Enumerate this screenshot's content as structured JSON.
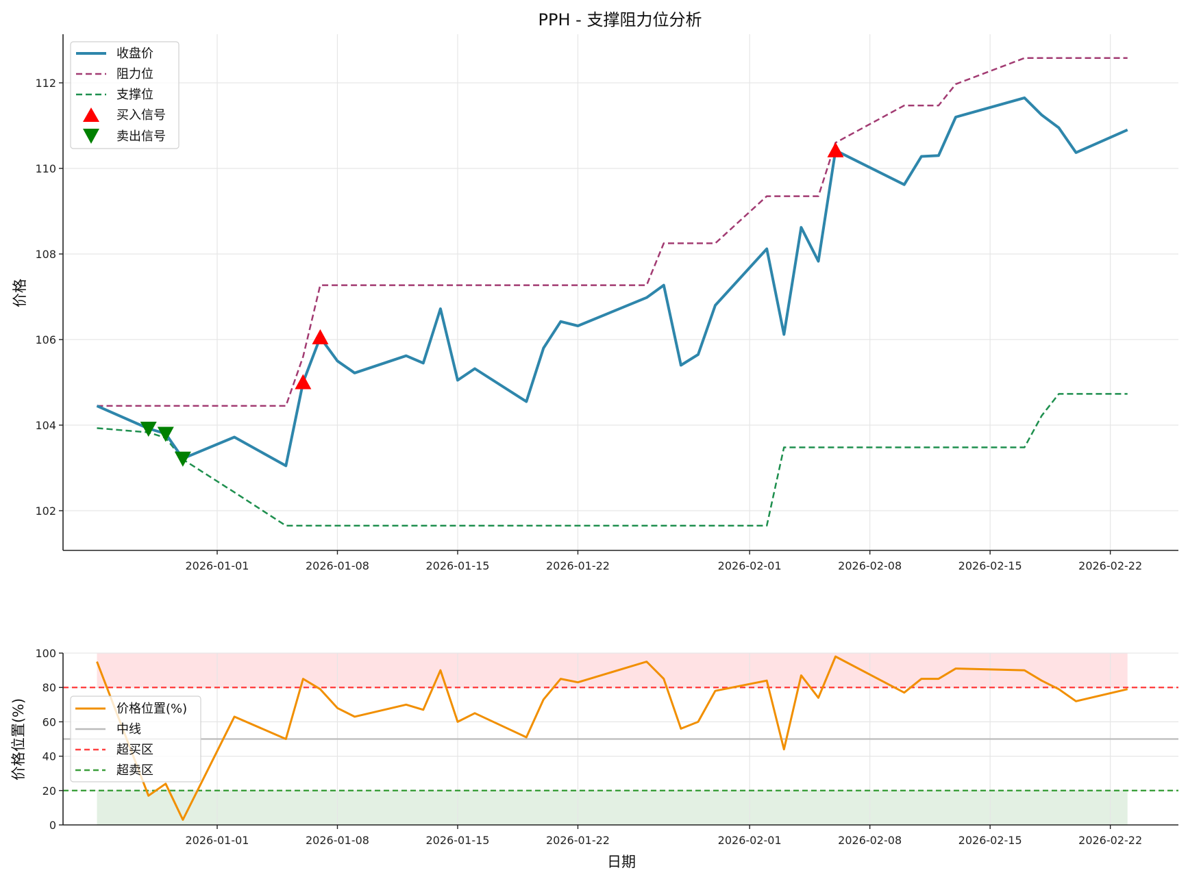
{
  "chart_data": [
    {
      "type": "line",
      "title": "PPH - 支撑阻力位分析",
      "xlabel": "",
      "ylabel": "价格",
      "ylim": [
        101.1,
        113.2
      ],
      "yticks": [
        102,
        104,
        106,
        108,
        110,
        112
      ],
      "xtick_labels": [
        "2026-01-01",
        "2026-01-08",
        "2026-01-15",
        "2026-01-22",
        "2026-02-01",
        "2026-02-08",
        "2026-02-15",
        "2026-02-22"
      ],
      "grid": true,
      "legend_position": "upper left",
      "x": [
        "2025-12-25",
        "2025-12-28",
        "2025-12-29",
        "2025-12-30",
        "2026-01-02",
        "2026-01-05",
        "2026-01-06",
        "2026-01-07",
        "2026-01-08",
        "2026-01-09",
        "2026-01-12",
        "2026-01-13",
        "2026-01-14",
        "2026-01-15",
        "2026-01-16",
        "2026-01-19",
        "2026-01-20",
        "2026-01-21",
        "2026-01-22",
        "2026-01-26",
        "2026-01-27",
        "2026-01-28",
        "2026-01-29",
        "2026-01-30",
        "2026-02-02",
        "2026-02-03",
        "2026-02-04",
        "2026-02-05",
        "2026-02-06",
        "2026-02-10",
        "2026-02-11",
        "2026-02-12",
        "2026-02-13",
        "2026-02-17",
        "2026-02-18",
        "2026-02-19",
        "2026-02-20",
        "2026-02-23"
      ],
      "series": [
        {
          "name": "收盘价",
          "color": "#2e86ab",
          "style": "solid",
          "values": [
            104.45,
            103.92,
            103.8,
            103.22,
            103.72,
            103.05,
            105.0,
            106.05,
            105.5,
            105.22,
            105.62,
            105.45,
            106.72,
            105.05,
            105.32,
            104.55,
            105.8,
            106.42,
            106.32,
            106.98,
            107.27,
            105.4,
            105.65,
            106.8,
            108.12,
            106.12,
            108.62,
            107.83,
            110.42,
            109.62,
            110.28,
            110.3,
            111.2,
            111.65,
            111.25,
            110.95,
            110.37,
            110.9
          ]
        },
        {
          "name": "阻力位",
          "color": "#a23b72",
          "style": "dashed",
          "values": [
            104.45,
            104.45,
            104.45,
            104.45,
            104.45,
            104.45,
            105.6,
            107.27,
            107.27,
            107.27,
            107.27,
            107.27,
            107.27,
            107.27,
            107.27,
            107.27,
            107.27,
            107.27,
            107.27,
            107.27,
            108.25,
            108.25,
            108.25,
            108.25,
            109.35,
            109.35,
            109.35,
            109.35,
            110.6,
            111.47,
            111.47,
            111.47,
            111.97,
            112.58,
            112.58,
            112.58,
            112.58,
            112.58
          ]
        },
        {
          "name": "支撑位",
          "color": "#1e8f4e",
          "style": "dashed",
          "values": [
            103.93,
            103.83,
            103.7,
            103.2,
            102.43,
            101.65,
            101.65,
            101.65,
            101.65,
            101.65,
            101.65,
            101.65,
            101.65,
            101.65,
            101.65,
            101.65,
            101.65,
            101.65,
            101.65,
            101.65,
            101.65,
            101.65,
            101.65,
            101.65,
            101.65,
            103.48,
            103.48,
            103.48,
            103.48,
            103.48,
            103.48,
            103.48,
            103.48,
            103.48,
            104.22,
            104.73,
            104.73,
            104.73
          ]
        }
      ],
      "markers": [
        {
          "name": "买入信号",
          "color": "#ff0000",
          "shape": "triangle-up",
          "points": [
            {
              "x": "2026-01-06",
              "y": 105.0
            },
            {
              "x": "2026-01-07",
              "y": 106.05
            },
            {
              "x": "2026-02-06",
              "y": 110.42
            }
          ]
        },
        {
          "name": "卖出信号",
          "color": "#008000",
          "shape": "triangle-down",
          "points": [
            {
              "x": "2025-12-28",
              "y": 103.92
            },
            {
              "x": "2025-12-29",
              "y": 103.8
            },
            {
              "x": "2025-12-30",
              "y": 103.22
            }
          ]
        }
      ]
    },
    {
      "type": "line",
      "title": "",
      "xlabel": "日期",
      "ylabel": "价格位置(%)",
      "ylim": [
        0,
        100
      ],
      "yticks": [
        0,
        20,
        40,
        60,
        80,
        100
      ],
      "xtick_labels": [
        "2026-01-01",
        "2026-01-08",
        "2026-01-15",
        "2026-01-22",
        "2026-02-01",
        "2026-02-08",
        "2026-02-15",
        "2026-02-22"
      ],
      "grid": true,
      "legend_position": "center left",
      "x": [
        "2025-12-25",
        "2025-12-28",
        "2025-12-29",
        "2025-12-30",
        "2026-01-02",
        "2026-01-05",
        "2026-01-06",
        "2026-01-07",
        "2026-01-08",
        "2026-01-09",
        "2026-01-12",
        "2026-01-13",
        "2026-01-14",
        "2026-01-15",
        "2026-01-16",
        "2026-01-19",
        "2026-01-20",
        "2026-01-21",
        "2026-01-22",
        "2026-01-26",
        "2026-01-27",
        "2026-01-28",
        "2026-01-29",
        "2026-01-30",
        "2026-02-02",
        "2026-02-03",
        "2026-02-04",
        "2026-02-05",
        "2026-02-06",
        "2026-02-10",
        "2026-02-11",
        "2026-02-12",
        "2026-02-13",
        "2026-02-17",
        "2026-02-18",
        "2026-02-19",
        "2026-02-20",
        "2026-02-23"
      ],
      "series": [
        {
          "name": "价格位置(%)",
          "color": "#f18f01",
          "style": "solid",
          "values": [
            95,
            17,
            24,
            3,
            63,
            50,
            85,
            79,
            68,
            63,
            70,
            67,
            90,
            60,
            65,
            51,
            73,
            85,
            83,
            95,
            85,
            56,
            60,
            78,
            84,
            44,
            87,
            74,
            98,
            77,
            85,
            85,
            91,
            90,
            84,
            79,
            72,
            79
          ]
        }
      ],
      "hlines": [
        {
          "name": "中线",
          "y": 50,
          "color": "#bbbbbb",
          "style": "solid"
        },
        {
          "name": "超买区",
          "y": 80,
          "color": "#ff4040",
          "style": "dashed"
        },
        {
          "name": "超卖区",
          "y": 20,
          "color": "#3a9e3a",
          "style": "dashed"
        }
      ],
      "bands": [
        {
          "from": 80,
          "to": 100,
          "color": "#ffe2e4"
        },
        {
          "from": 0,
          "to": 20,
          "color": "#e3f0e3"
        }
      ]
    }
  ],
  "legend_top": [
    "收盘价",
    "阻力位",
    "支撑位",
    "买入信号",
    "卖出信号"
  ],
  "legend_bottom": [
    "价格位置(%)",
    "中线",
    "超买区",
    "超卖区"
  ]
}
